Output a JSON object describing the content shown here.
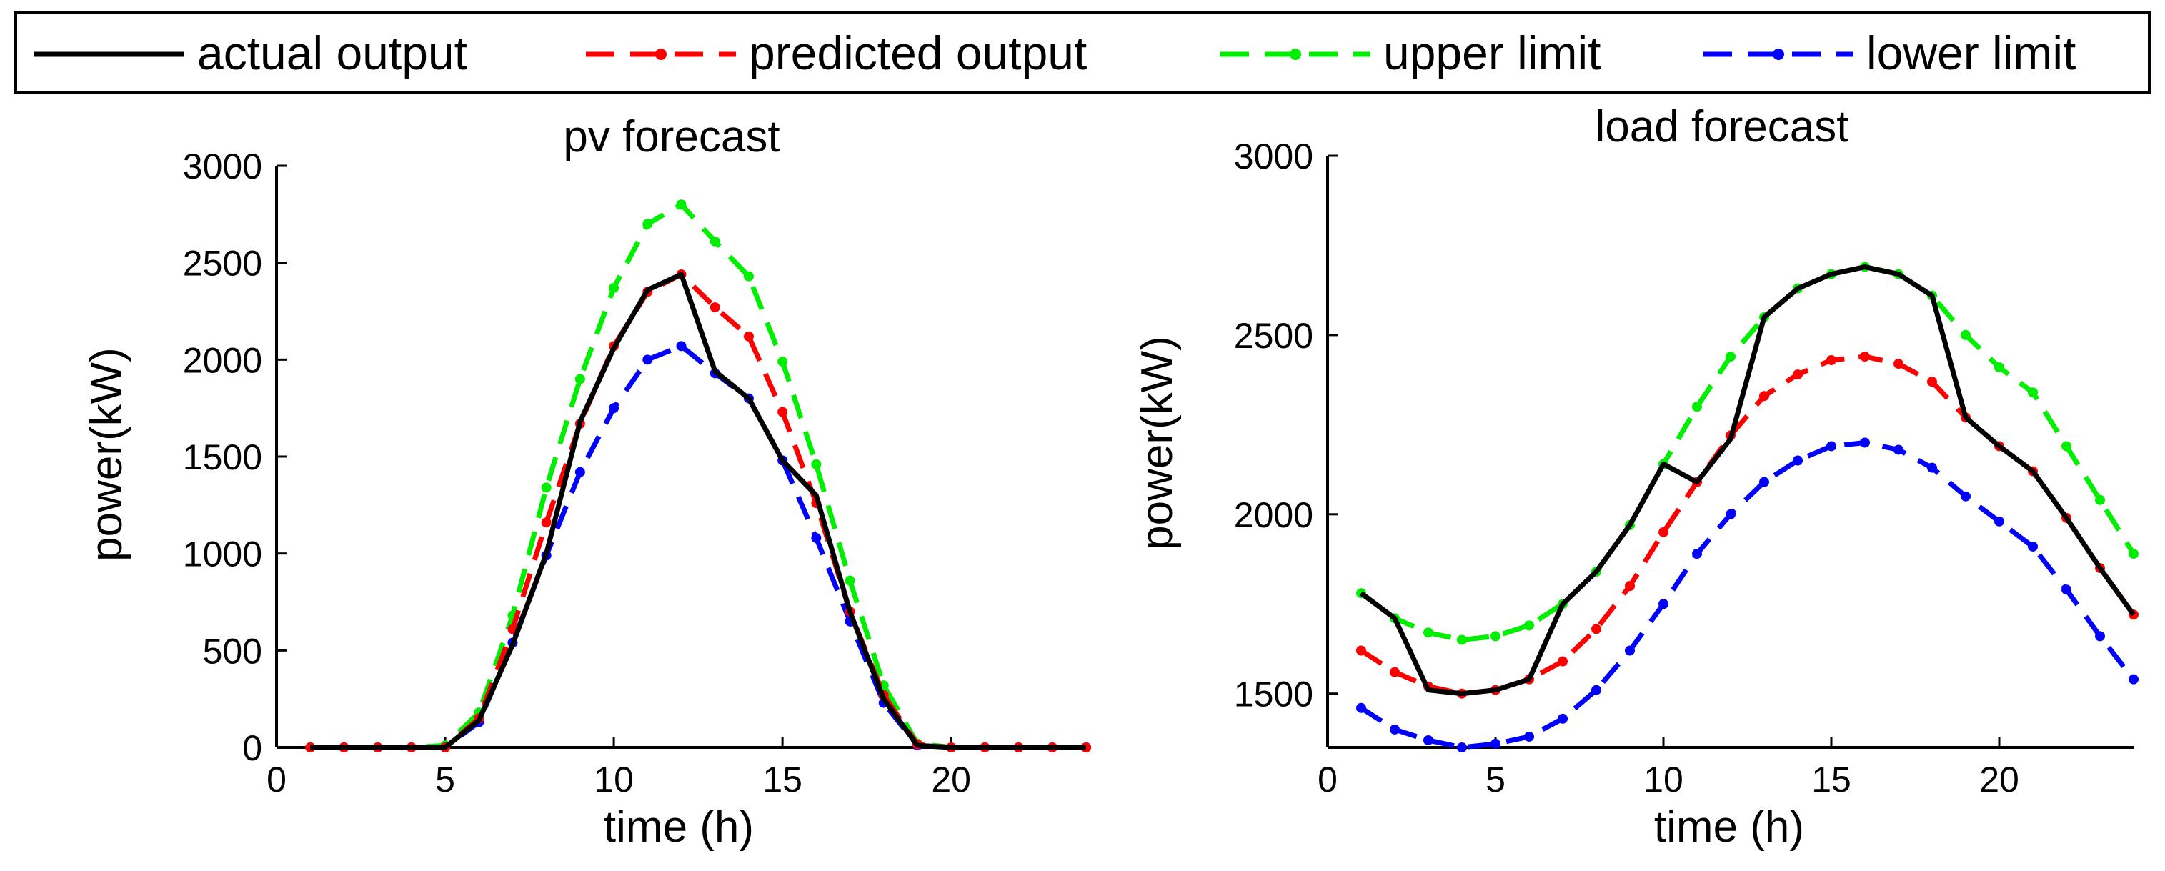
{
  "legend": {
    "entries": [
      {
        "label": "actual output",
        "color": "#000000",
        "dash": "solid",
        "marker": false
      },
      {
        "label": "predicted output",
        "color": "#ff0000",
        "dash": "dashed",
        "marker": true
      },
      {
        "label": "upper limit",
        "color": "#00ee00",
        "dash": "dashed",
        "marker": true
      },
      {
        "label": "lower limit",
        "color": "#0000ff",
        "dash": "dashed",
        "marker": true
      }
    ]
  },
  "chart_data": [
    {
      "type": "line",
      "title": "pv forecast",
      "xlabel": "time (h)",
      "ylabel": "power(kW)",
      "xlim": [
        0,
        24
      ],
      "ylim": [
        0,
        3000
      ],
      "xticks": [
        0,
        5,
        10,
        15,
        20
      ],
      "yticks": [
        0,
        500,
        1000,
        1500,
        2000,
        2500,
        3000
      ],
      "grid": false,
      "x": [
        1,
        2,
        3,
        4,
        5,
        6,
        7,
        8,
        9,
        10,
        11,
        12,
        13,
        14,
        15,
        16,
        17,
        18,
        19,
        20,
        21,
        22,
        23,
        24
      ],
      "series": [
        {
          "name": "actual output",
          "color": "#000000",
          "values": [
            0,
            0,
            0,
            0,
            0,
            140,
            530,
            1000,
            1680,
            2060,
            2360,
            2440,
            1940,
            1800,
            1480,
            1300,
            700,
            250,
            10,
            0,
            0,
            0,
            0,
            0
          ]
        },
        {
          "name": "predicted output",
          "color": "#ff0000",
          "values": [
            0,
            0,
            0,
            0,
            0,
            150,
            610,
            1160,
            1670,
            2070,
            2350,
            2440,
            2270,
            2120,
            1730,
            1260,
            700,
            270,
            15,
            0,
            0,
            0,
            0,
            0
          ]
        },
        {
          "name": "upper limit",
          "color": "#00ee00",
          "values": [
            0,
            0,
            0,
            0,
            10,
            180,
            680,
            1340,
            1900,
            2370,
            2700,
            2800,
            2610,
            2430,
            1990,
            1460,
            860,
            320,
            20,
            0,
            0,
            0,
            0,
            0
          ]
        },
        {
          "name": "lower limit",
          "color": "#0000ff",
          "values": [
            0,
            0,
            0,
            0,
            0,
            130,
            540,
            990,
            1420,
            1750,
            2000,
            2070,
            1930,
            1800,
            1480,
            1080,
            650,
            230,
            10,
            0,
            0,
            0,
            0,
            0
          ]
        }
      ]
    },
    {
      "type": "line",
      "title": "load forecast",
      "xlabel": "time (h)",
      "ylabel": "power(kW)",
      "xlim": [
        0,
        24
      ],
      "ylim": [
        1350,
        3000
      ],
      "xticks": [
        0,
        5,
        10,
        15,
        20
      ],
      "yticks": [
        1500,
        2000,
        2500,
        3000
      ],
      "grid": false,
      "x": [
        1,
        2,
        3,
        4,
        5,
        6,
        7,
        8,
        9,
        10,
        11,
        12,
        13,
        14,
        15,
        16,
        17,
        18,
        19,
        20,
        21,
        22,
        23,
        24
      ],
      "series": [
        {
          "name": "actual output",
          "color": "#000000",
          "values": [
            1780,
            1710,
            1510,
            1500,
            1510,
            1540,
            1750,
            1840,
            1970,
            2140,
            2090,
            2210,
            2550,
            2630,
            2670,
            2690,
            2670,
            2610,
            2270,
            2190,
            2120,
            1990,
            1850,
            1720
          ]
        },
        {
          "name": "predicted output",
          "color": "#ff0000",
          "values": [
            1620,
            1560,
            1520,
            1500,
            1510,
            1540,
            1590,
            1680,
            1800,
            1950,
            2090,
            2220,
            2330,
            2390,
            2430,
            2440,
            2420,
            2370,
            2270,
            2190,
            2120,
            1990,
            1850,
            1720
          ]
        },
        {
          "name": "upper limit",
          "color": "#00ee00",
          "values": [
            1780,
            1710,
            1670,
            1650,
            1660,
            1690,
            1750,
            1840,
            1970,
            2140,
            2300,
            2440,
            2550,
            2630,
            2670,
            2690,
            2670,
            2610,
            2500,
            2410,
            2340,
            2190,
            2040,
            1890
          ]
        },
        {
          "name": "lower limit",
          "color": "#0000ff",
          "values": [
            1460,
            1400,
            1370,
            1350,
            1360,
            1380,
            1430,
            1510,
            1620,
            1750,
            1890,
            2000,
            2090,
            2150,
            2190,
            2200,
            2180,
            2130,
            2050,
            1980,
            1910,
            1790,
            1660,
            1540
          ]
        }
      ]
    }
  ]
}
